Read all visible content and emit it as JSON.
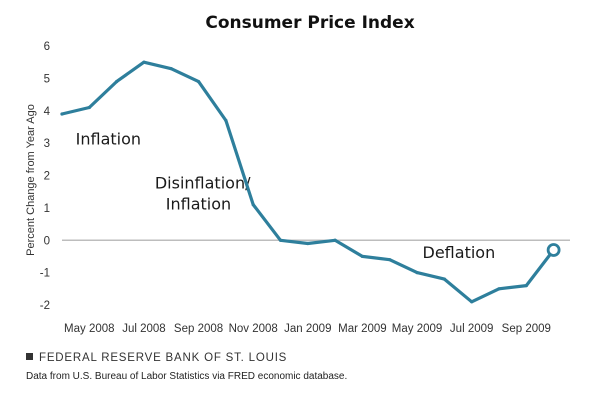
{
  "chart_data": {
    "type": "line",
    "title": "Consumer Price Index",
    "xlabel": "",
    "ylabel": "Percent Change from Year Ago",
    "ylim": [
      -2,
      6
    ],
    "yticks": [
      6,
      5,
      4,
      3,
      2,
      1,
      0,
      -1,
      -2
    ],
    "xtick_labels": [
      "May 2008",
      "Jul 2008",
      "Sep 2008",
      "Nov 2008",
      "Jan 2009",
      "Mar 2009",
      "May 2009",
      "Jul 2009",
      "Sep 2009"
    ],
    "xtick_months": [
      4,
      6,
      8,
      10,
      12,
      14,
      16,
      18,
      20
    ],
    "series": [
      {
        "name": "Consumer Price Index",
        "color": "#2e7f9c",
        "x": [
          3,
          4,
          5,
          6,
          7,
          8,
          9,
          10,
          11,
          12,
          13,
          14,
          15,
          16,
          17,
          18,
          19,
          20,
          21
        ],
        "values": [
          3.9,
          4.1,
          4.9,
          5.5,
          5.3,
          4.9,
          3.7,
          1.1,
          0.0,
          -0.1,
          0.0,
          -0.5,
          -0.6,
          -1.0,
          -1.2,
          -1.9,
          -1.5,
          -1.4,
          -0.3
        ]
      }
    ],
    "annotations": [
      {
        "text": "Inflation",
        "x": 3.5,
        "y": 2.95
      },
      {
        "text": "Disinflation/",
        "x": 6.4,
        "y": 1.6
      },
      {
        "text": "Inflation",
        "x": 6.8,
        "y": 0.95
      },
      {
        "text": "Deflation",
        "x": 16.2,
        "y": -0.55
      }
    ],
    "grid": false,
    "legend": false
  },
  "footer": {
    "source": "FEDERAL RESERVE BANK OF ST. LOUIS",
    "note": "Data from U.S. Bureau of Labor Statistics via FRED economic database."
  }
}
